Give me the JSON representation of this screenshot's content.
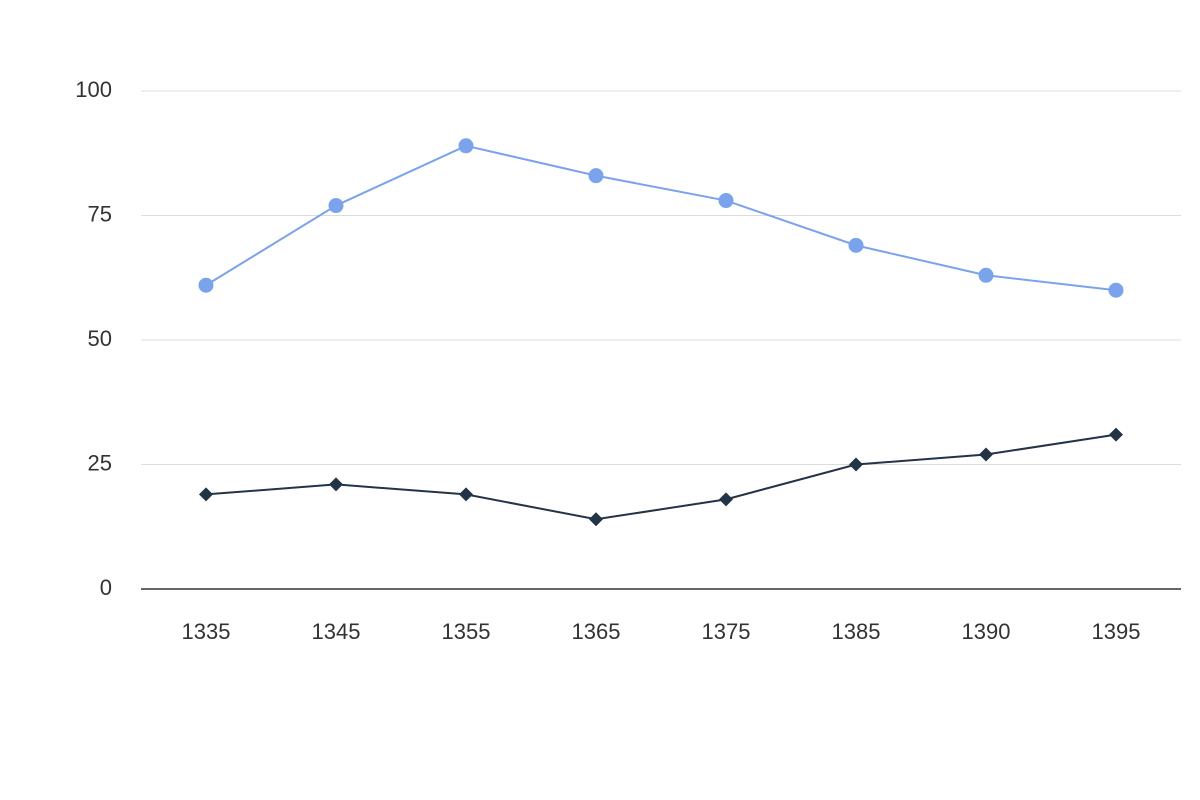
{
  "chart_data": {
    "type": "line",
    "categories": [
      "1335",
      "1345",
      "1355",
      "1365",
      "1375",
      "1385",
      "1390",
      "1395"
    ],
    "series": [
      {
        "color": "#7ba3ec",
        "marker": "circle",
        "values": [
          61,
          77,
          89,
          83,
          78,
          69,
          63,
          60
        ]
      },
      {
        "color": "#243447",
        "marker": "diamond",
        "values": [
          19,
          21,
          19,
          14,
          18,
          25,
          27,
          31
        ]
      }
    ],
    "ylim": [
      0,
      100
    ],
    "yticks": [
      0,
      25,
      50,
      75,
      100
    ],
    "grid": true
  }
}
